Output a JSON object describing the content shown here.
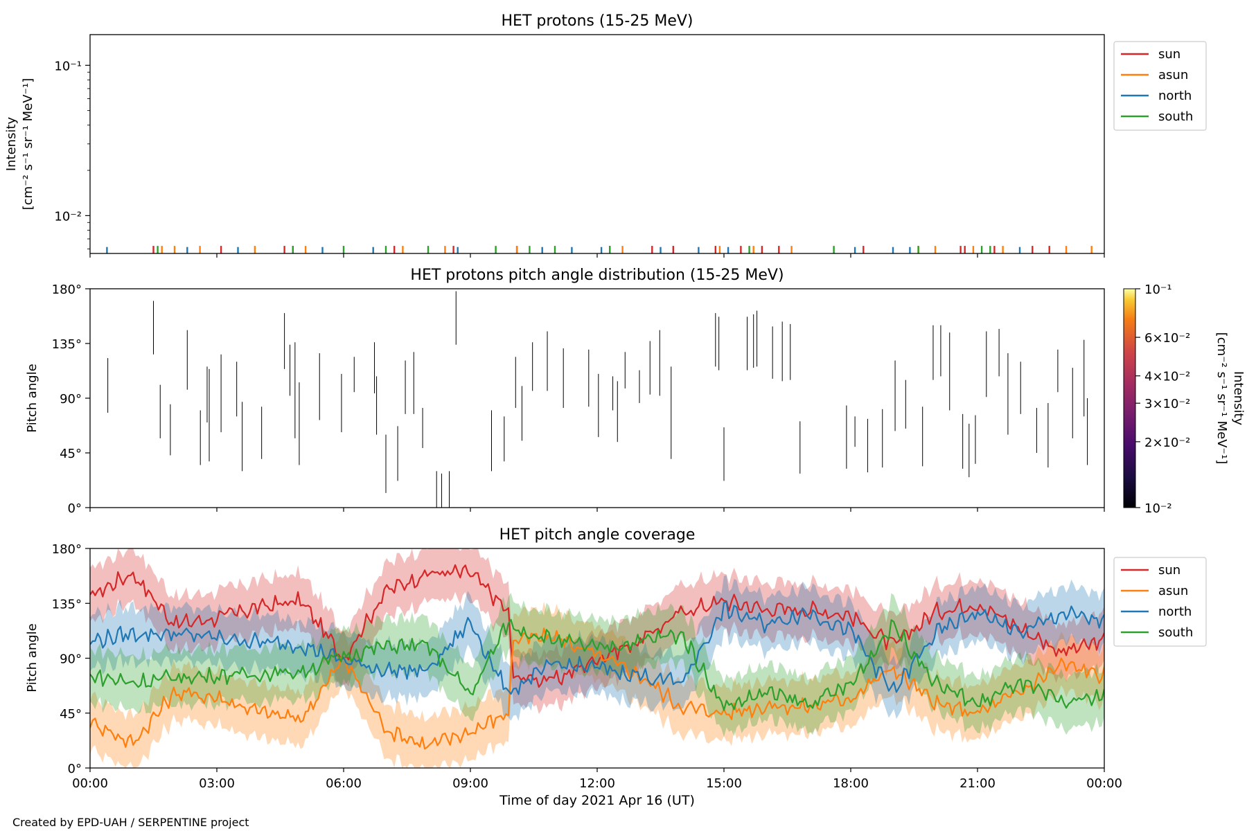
{
  "figure": {
    "credit": "Created by EPD-UAH / SERPENTINE project",
    "xlabel": "Time of day 2021 Apr 16 (UT)",
    "xticks": [
      "00:00",
      "03:00",
      "06:00",
      "09:00",
      "12:00",
      "15:00",
      "18:00",
      "21:00",
      "00:00"
    ],
    "colors": {
      "sun": "#d62728",
      "asun": "#ff7f0e",
      "north": "#1f77b4",
      "south": "#2ca02c"
    }
  },
  "chart_data": [
    {
      "type": "line",
      "title": "HET protons (15-25 MeV)",
      "ylabel": "Intensity",
      "ylabel2": "[cm⁻² s⁻¹ sr⁻¹ MeV⁻¹]",
      "yscale": "log",
      "ylim": [
        0.0056,
        0.16
      ],
      "yticks": [
        {
          "label": "10⁻¹",
          "value": 0.1
        },
        {
          "label": "10⁻²",
          "value": 0.01
        }
      ],
      "xlim_hours": [
        0,
        24
      ],
      "legend": "right-outside",
      "series": [
        {
          "name": "sun",
          "key": "sun",
          "spike_value": 0.0059,
          "times_hours": [
            1.5,
            3.1,
            4.6,
            4.8,
            7.2,
            8.6,
            10.1,
            12.3,
            13.3,
            13.8,
            14.8,
            15.4,
            15.9,
            16.3,
            18.3,
            20.6,
            20.7,
            21.4,
            22.3,
            22.7
          ]
        },
        {
          "name": "asun",
          "key": "asun",
          "spike_value": 0.0059,
          "times_hours": [
            1.7,
            2.0,
            2.6,
            3.9,
            5.1,
            7.4,
            8.4,
            10.1,
            12.6,
            14.9,
            15.7,
            16.6,
            19.6,
            20.0,
            20.9,
            21.6,
            23.1,
            23.7
          ]
        },
        {
          "name": "north",
          "key": "north",
          "spike_value": 0.0058,
          "times_hours": [
            0.4,
            2.3,
            3.5,
            5.5,
            6.7,
            8.7,
            10.7,
            11.4,
            12.1,
            13.5,
            14.4,
            15.1,
            18.1,
            19.0,
            19.4,
            22.0
          ]
        },
        {
          "name": "south",
          "key": "south",
          "spike_value": 0.0059,
          "times_hours": [
            1.6,
            4.8,
            6.0,
            7.0,
            8.0,
            9.6,
            10.4,
            11.0,
            12.3,
            15.6,
            17.6,
            19.6,
            21.1,
            21.3
          ]
        }
      ]
    },
    {
      "type": "heatmap",
      "title": "HET protons pitch angle distribution (15-25 MeV)",
      "ylabel": "Pitch angle",
      "ylim": [
        0,
        180
      ],
      "yticks": [
        "0°",
        "45°",
        "90°",
        "135°",
        "180°"
      ],
      "xlim_hours": [
        0,
        24
      ],
      "colorbar": {
        "label": "Intensity",
        "label2": "[cm⁻² s⁻¹ sr⁻¹ MeV⁻¹]",
        "range": [
          0.01,
          0.1
        ],
        "ticks": [
          {
            "label": "10⁻¹",
            "value": 0.1
          },
          {
            "label": "6×10⁻²",
            "value": 0.06
          },
          {
            "label": "4×10⁻²",
            "value": 0.04
          },
          {
            "label": "3×10⁻²",
            "value": 0.03
          },
          {
            "label": "2×10⁻²",
            "value": 0.02
          },
          {
            "label": "10⁻²",
            "value": 0.01
          }
        ]
      },
      "segments": [
        [
          0.42,
          78,
          123
        ],
        [
          1.5,
          126,
          170
        ],
        [
          1.66,
          57,
          101
        ],
        [
          1.9,
          43,
          85
        ],
        [
          2.3,
          97,
          146
        ],
        [
          2.61,
          35,
          80
        ],
        [
          2.77,
          70,
          116
        ],
        [
          2.82,
          38,
          114
        ],
        [
          3.1,
          62,
          126
        ],
        [
          3.47,
          75,
          120
        ],
        [
          3.6,
          30,
          87
        ],
        [
          4.06,
          40,
          83
        ],
        [
          4.6,
          114,
          160
        ],
        [
          4.73,
          92,
          134
        ],
        [
          4.85,
          57,
          136
        ],
        [
          4.95,
          35,
          103
        ],
        [
          5.43,
          72,
          127
        ],
        [
          5.95,
          62,
          110
        ],
        [
          6.25,
          95,
          124
        ],
        [
          6.73,
          94,
          136
        ],
        [
          6.78,
          60,
          108
        ],
        [
          7.0,
          12,
          60
        ],
        [
          7.28,
          22,
          67
        ],
        [
          7.46,
          77,
          121
        ],
        [
          7.66,
          77,
          128
        ],
        [
          7.87,
          49,
          82
        ],
        [
          8.2,
          0,
          30
        ],
        [
          8.32,
          0,
          28
        ],
        [
          8.5,
          0,
          30
        ],
        [
          8.66,
          134,
          178
        ],
        [
          9.5,
          30,
          80
        ],
        [
          9.8,
          38,
          75
        ],
        [
          10.07,
          82,
          124
        ],
        [
          10.22,
          55,
          100
        ],
        [
          10.47,
          96,
          136
        ],
        [
          10.82,
          96,
          145
        ],
        [
          11.2,
          82,
          131
        ],
        [
          11.8,
          83,
          130
        ],
        [
          12.03,
          58,
          110
        ],
        [
          12.37,
          80,
          108
        ],
        [
          12.48,
          54,
          104
        ],
        [
          12.66,
          98,
          128
        ],
        [
          13.0,
          86,
          113
        ],
        [
          13.25,
          93,
          137
        ],
        [
          13.48,
          92,
          146
        ],
        [
          13.75,
          40,
          116
        ],
        [
          14.8,
          116,
          160
        ],
        [
          14.88,
          113,
          157
        ],
        [
          15.0,
          22,
          66
        ],
        [
          15.55,
          113,
          157
        ],
        [
          15.7,
          115,
          159
        ],
        [
          15.78,
          116,
          162
        ],
        [
          16.15,
          106,
          149
        ],
        [
          16.38,
          104,
          153
        ],
        [
          16.57,
          105,
          151
        ],
        [
          16.8,
          28,
          71
        ],
        [
          17.9,
          32,
          84
        ],
        [
          18.1,
          50,
          75
        ],
        [
          18.4,
          29,
          73
        ],
        [
          18.75,
          33,
          81
        ],
        [
          19.05,
          63,
          121
        ],
        [
          19.3,
          65,
          105
        ],
        [
          19.7,
          34,
          83
        ],
        [
          19.95,
          105,
          150
        ],
        [
          20.13,
          108,
          150
        ],
        [
          20.34,
          80,
          144
        ],
        [
          20.65,
          32,
          77
        ],
        [
          20.8,
          25,
          69
        ],
        [
          20.95,
          36,
          76
        ],
        [
          21.21,
          91,
          145
        ],
        [
          21.51,
          108,
          147
        ],
        [
          21.72,
          60,
          127
        ],
        [
          22.02,
          77,
          120
        ],
        [
          22.4,
          45,
          82
        ],
        [
          22.67,
          33,
          86
        ],
        [
          22.9,
          95,
          130
        ],
        [
          23.25,
          57,
          115
        ],
        [
          23.52,
          75,
          138
        ],
        [
          23.6,
          35,
          90
        ]
      ]
    },
    {
      "type": "area",
      "title": "HET pitch angle coverage",
      "ylabel": "Pitch angle",
      "ylim": [
        0,
        180
      ],
      "yticks": [
        "0°",
        "45°",
        "90°",
        "135°",
        "180°"
      ],
      "xlim_hours": [
        0,
        24
      ],
      "legend": "right-outside",
      "band_halfwidth_deg": 22,
      "series": [
        {
          "name": "sun",
          "key": "sun",
          "times_hours": [
            0,
            1,
            2,
            3,
            4,
            5,
            6,
            7,
            8,
            9,
            9.9,
            10,
            11,
            12,
            13,
            14,
            15,
            16,
            17,
            18,
            19,
            20,
            21,
            22,
            23,
            24
          ],
          "values": [
            141,
            160,
            118,
            123,
            132,
            137,
            90,
            145,
            160,
            160,
            128,
            75,
            72,
            90,
            104,
            128,
            137,
            130,
            130,
            125,
            100,
            128,
            135,
            115,
            95,
            104
          ]
        },
        {
          "name": "asun",
          "key": "asun",
          "times_hours": [
            0,
            1,
            2,
            3,
            4,
            5,
            6,
            7,
            8,
            9,
            9.9,
            10,
            11,
            12,
            13,
            14,
            15,
            16,
            17,
            18,
            19,
            20,
            21,
            22,
            23,
            24
          ],
          "values": [
            39,
            20,
            62,
            58,
            46,
            40,
            90,
            32,
            18,
            30,
            45,
            105,
            108,
            92,
            76,
            50,
            45,
            51,
            50,
            58,
            82,
            52,
            45,
            62,
            85,
            76
          ]
        },
        {
          "name": "north",
          "key": "north",
          "times_hours": [
            0,
            1,
            2,
            3,
            4,
            5,
            6,
            7,
            8,
            9,
            9.9,
            10,
            11,
            12,
            13,
            14,
            15,
            16,
            17,
            18,
            19,
            20,
            21,
            22,
            23,
            24
          ],
          "values": [
            104,
            110,
            110,
            107,
            103,
            101,
            88,
            80,
            80,
            120,
            60,
            65,
            85,
            82,
            76,
            70,
            130,
            118,
            128,
            112,
            62,
            110,
            128,
            110,
            127,
            120
          ]
        },
        {
          "name": "south",
          "key": "south",
          "times_hours": [
            0,
            1,
            2,
            3,
            4,
            5,
            6,
            7,
            8,
            9,
            9.9,
            10,
            11,
            12,
            13,
            14,
            15,
            16,
            17,
            18,
            19,
            20,
            21,
            22,
            23,
            24
          ],
          "values": [
            76,
            70,
            74,
            76,
            77,
            79,
            92,
            100,
            100,
            60,
            120,
            115,
            105,
            98,
            104,
            110,
            50,
            62,
            52,
            68,
            118,
            70,
            52,
            70,
            53,
            60
          ]
        }
      ]
    }
  ]
}
